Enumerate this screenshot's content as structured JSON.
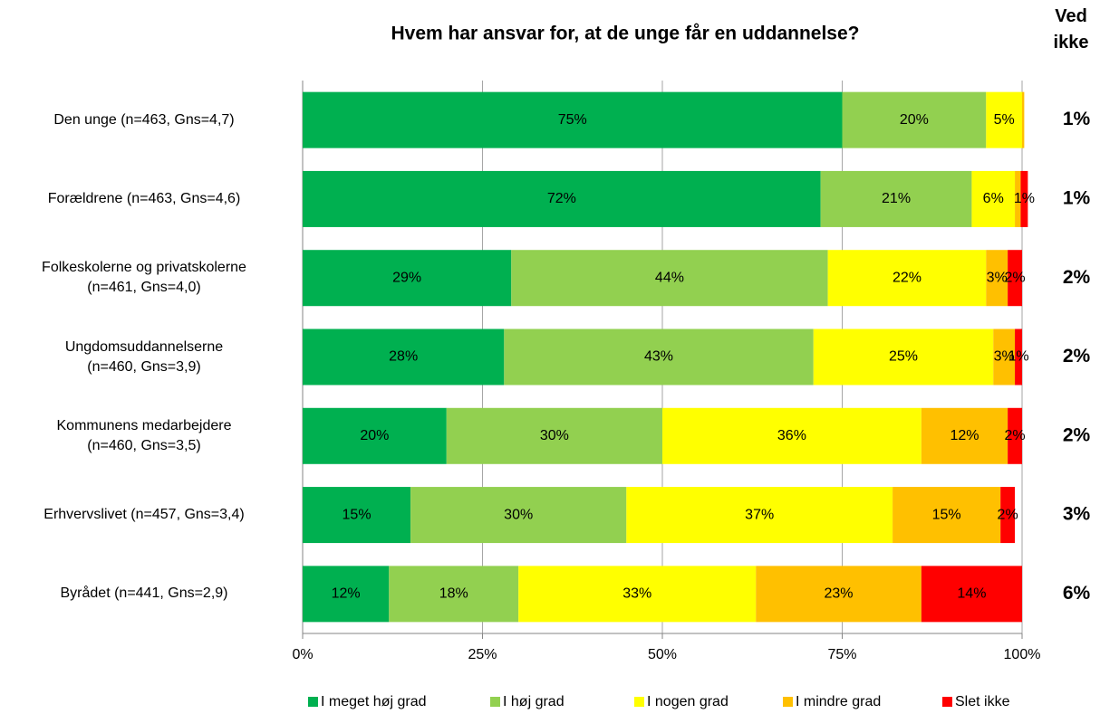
{
  "chart_data": {
    "type": "stacked_bar_horizontal",
    "title": "Hvem har ansvar for, at de unge får en uddannelse?",
    "categories": [
      "Den unge (n=463, Gns=4,7)",
      "Forældrene (n=463, Gns=4,6)",
      "Folkeskolerne og privatskolerne\n(n=461, Gns=4,0)",
      "Ungdomsuddannelserne\n(n=460, Gns=3,9)",
      "Kommunens medarbejdere\n(n=460, Gns=3,5)",
      "Erhvervslivet (n=457, Gns=3,4)",
      "Byrådet (n=441, Gns=2,9)"
    ],
    "series": [
      {
        "name": "I meget høj grad",
        "color": "#00b050",
        "values": [
          75,
          72,
          29,
          28,
          20,
          15,
          12
        ],
        "value_labels": [
          "75%",
          "72%",
          "29%",
          "28%",
          "20%",
          "15%",
          "12%"
        ]
      },
      {
        "name": "I høj grad",
        "color": "#92d050",
        "values": [
          20,
          21,
          44,
          43,
          30,
          30,
          18
        ],
        "value_labels": [
          "20%",
          "21%",
          "44%",
          "43%",
          "30%",
          "30%",
          "18%"
        ]
      },
      {
        "name": "I nogen grad",
        "color": "#ffff00",
        "values": [
          5,
          6,
          22,
          25,
          36,
          37,
          33
        ],
        "value_labels": [
          "5%",
          "6%",
          "22%",
          "25%",
          "36%",
          "37%",
          "33%"
        ]
      },
      {
        "name": "I mindre grad",
        "color": "#ffc000",
        "values": [
          0.3,
          0.8,
          3,
          3,
          12,
          15,
          23
        ],
        "value_labels": [
          null,
          null,
          "3%",
          "3%",
          "12%",
          "15%",
          "23%"
        ]
      },
      {
        "name": "Slet ikke",
        "color": "#ff0000",
        "values": [
          0,
          1,
          2,
          1,
          2,
          2,
          14
        ],
        "value_labels": [
          null,
          "1%",
          "2%",
          "1%",
          "2%",
          "2%",
          "14%"
        ]
      }
    ],
    "xlim": [
      0,
      100
    ],
    "xticks": [
      {
        "value": 0,
        "label": "0%"
      },
      {
        "value": 25,
        "label": "25%"
      },
      {
        "value": 50,
        "label": "50%"
      },
      {
        "value": 75,
        "label": "75%"
      },
      {
        "value": 100,
        "label": "100%"
      }
    ],
    "grid": true,
    "legend": "bottom",
    "dont_know": {
      "title": "Ved ikke",
      "values": [
        1,
        1,
        2,
        2,
        2,
        3,
        6
      ],
      "value_labels": [
        "1%",
        "1%",
        "2%",
        "2%",
        "2%",
        "3%",
        "6%"
      ]
    }
  }
}
